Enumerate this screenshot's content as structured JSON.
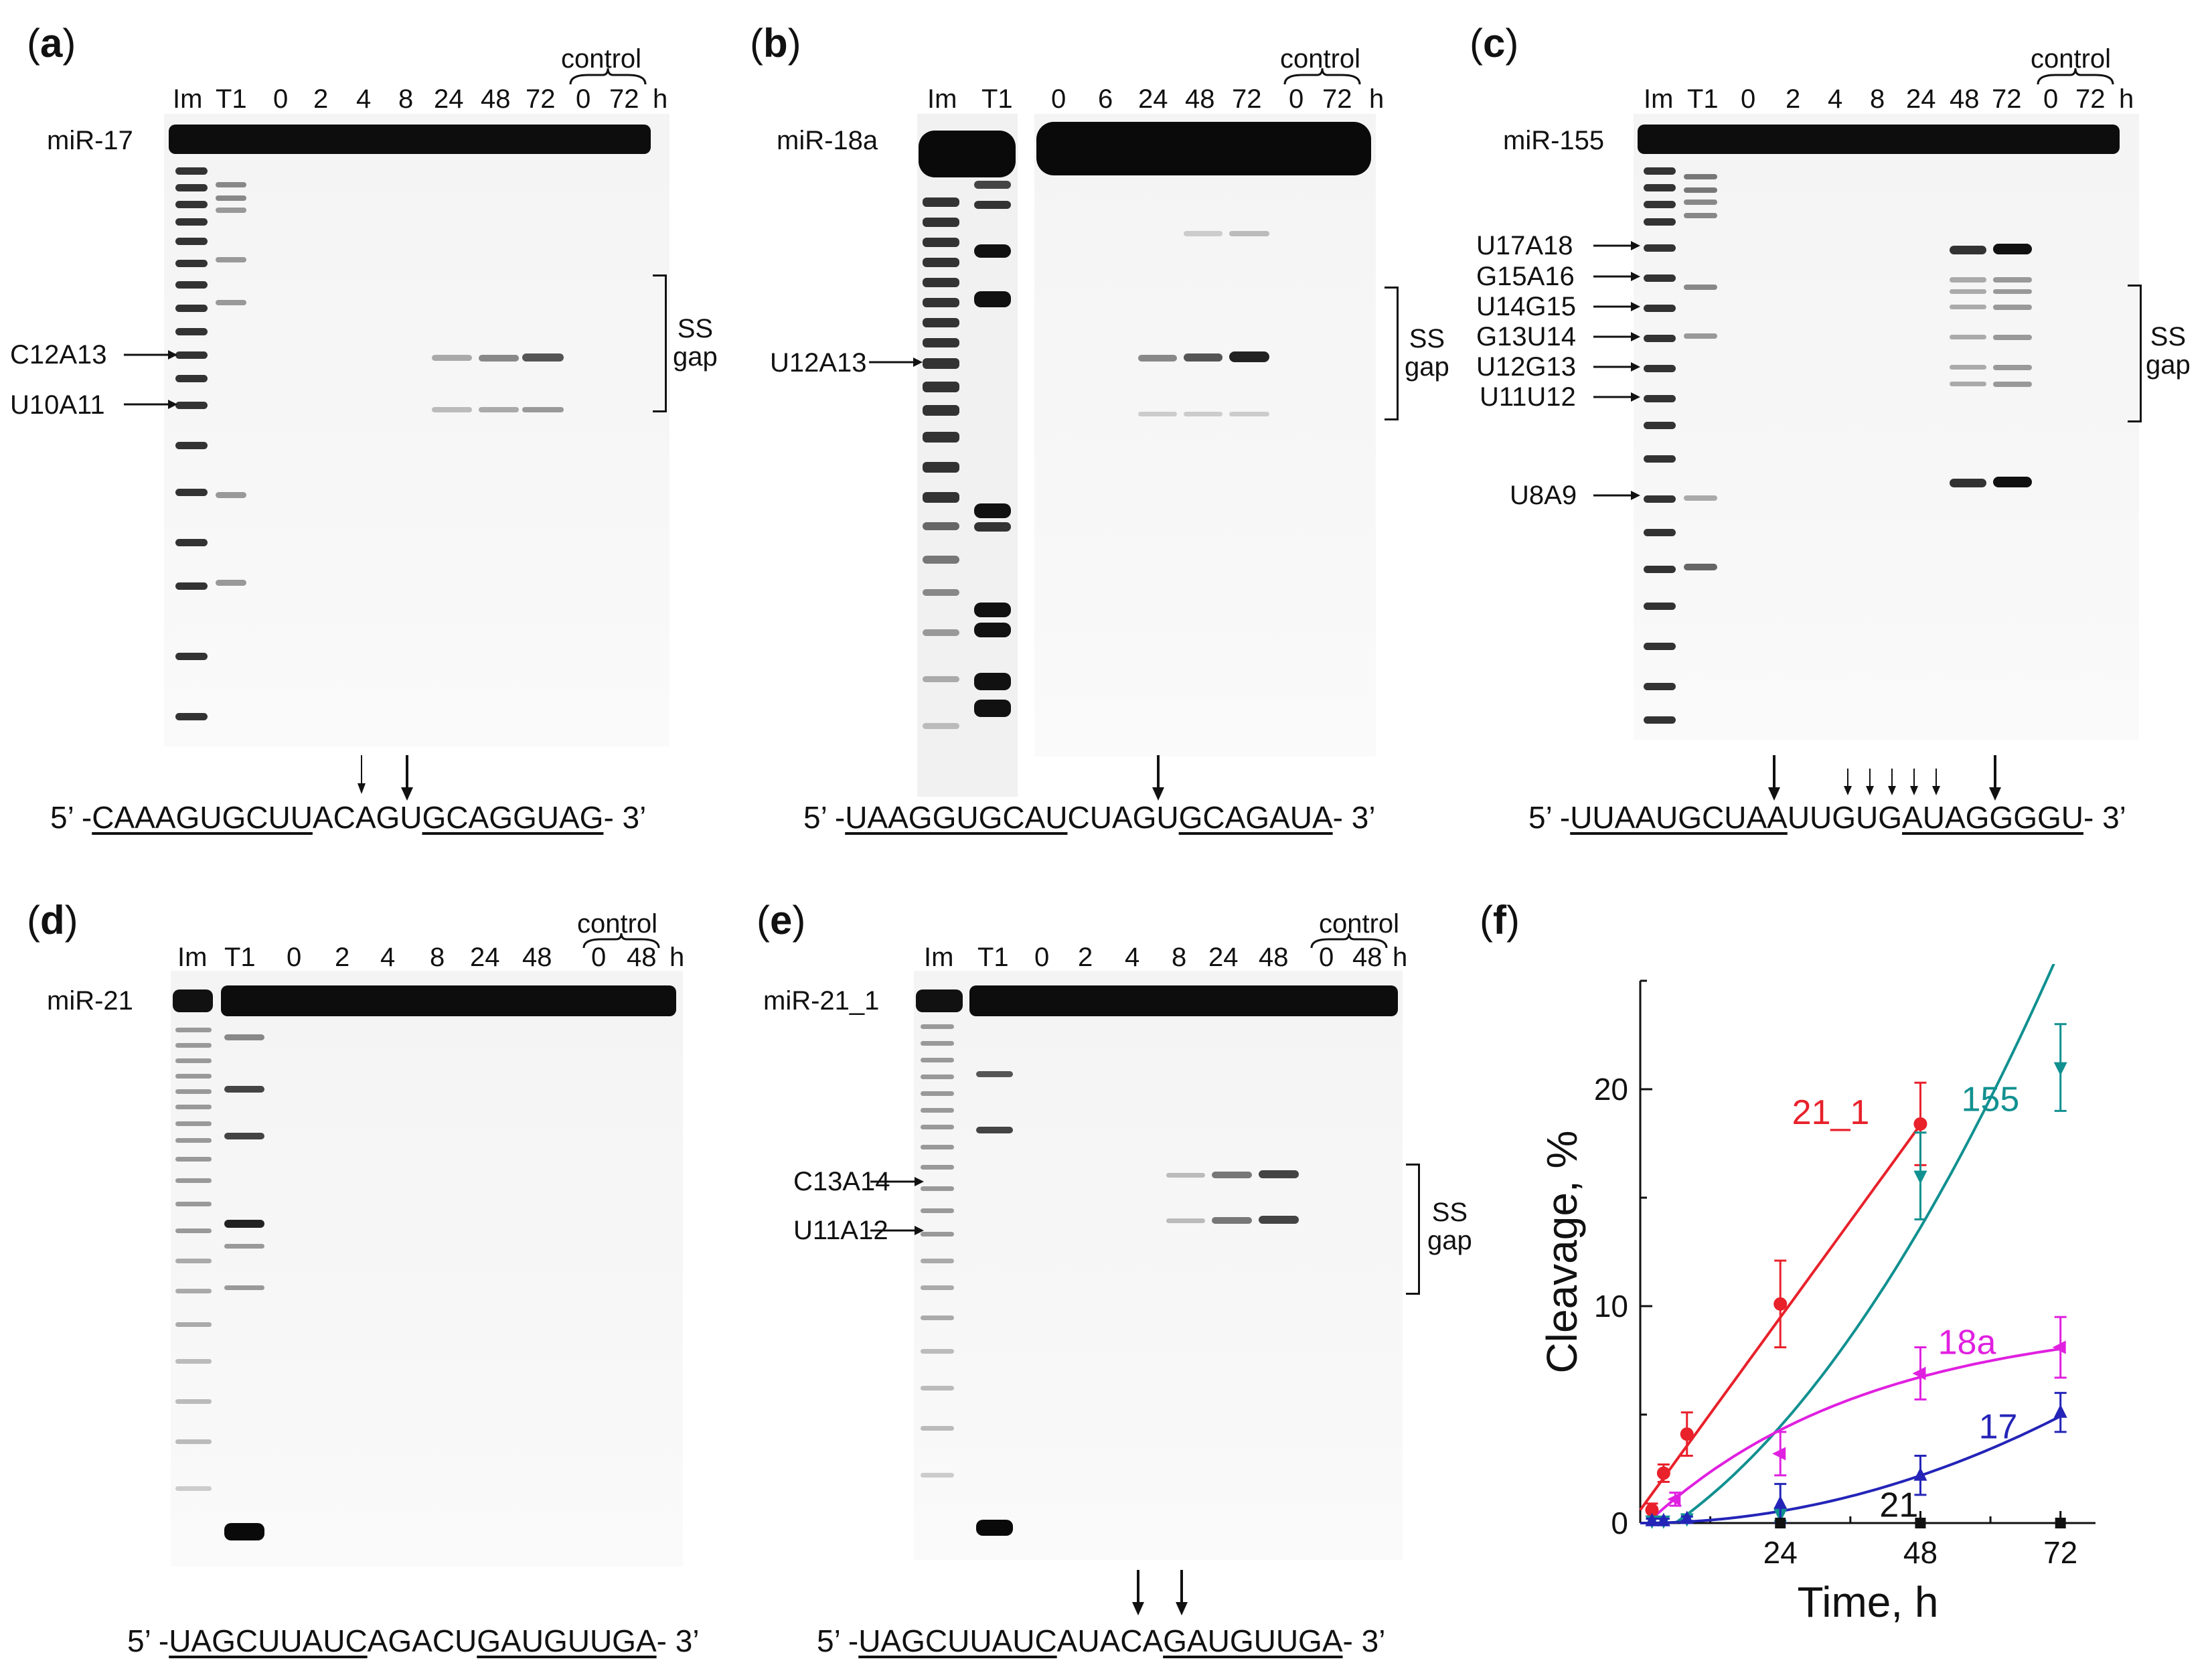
{
  "panels": {
    "a": {
      "label_open": "(",
      "label_letter": "a",
      "label_close": ")",
      "rna": "miR-17",
      "lanes": [
        "Im",
        "T1",
        "0",
        "2",
        "4",
        "8",
        "24",
        "48",
        "72",
        "0",
        "72"
      ],
      "unit": "h",
      "control_word": "control",
      "sites": [
        "C12A13",
        "U10A11"
      ],
      "ss_gap": [
        "SS",
        "gap"
      ],
      "seq_prefix": "5’ -",
      "seq_u1": "CAAAGUGCUU",
      "seq_mid": "ACAGU",
      "seq_u2": "GCAGGUAG",
      "seq_suffix": "- 3’"
    },
    "b": {
      "label_open": "(",
      "label_letter": "b",
      "label_close": ")",
      "rna": "miR-18a",
      "lanes": [
        "Im",
        "T1",
        "0",
        "6",
        "24",
        "48",
        "72",
        "0",
        "72"
      ],
      "unit": "h",
      "control_word": "control",
      "sites": [
        "U12A13"
      ],
      "ss_gap": [
        "SS",
        "gap"
      ],
      "seq_prefix": "5’ -",
      "seq_u1": "UAAGGUGCAU",
      "seq_mid": "CUAGU",
      "seq_u2": "GCAGAUA",
      "seq_suffix": "- 3’"
    },
    "c": {
      "label_open": "(",
      "label_letter": "c",
      "label_close": ")",
      "rna": "miR-155",
      "lanes": [
        "Im",
        "T1",
        "0",
        "2",
        "4",
        "8",
        "24",
        "48",
        "72",
        "0",
        "72"
      ],
      "unit": "h",
      "control_word": "control",
      "sites": [
        "U17A18",
        "G15A16",
        "U14G15",
        "G13U14",
        "U12G13",
        "U11U12",
        "U8A9"
      ],
      "ss_gap": [
        "SS",
        "gap"
      ],
      "seq_prefix": "5’ -",
      "seq_u1": "UUAAUGCUAA",
      "seq_mid": "UUGUG",
      "seq_u2": "AUAGGGGU",
      "seq_suffix": "- 3’"
    },
    "d": {
      "label_open": "(",
      "label_letter": "d",
      "label_close": ")",
      "rna": "miR-21",
      "lanes": [
        "Im",
        "T1",
        "0",
        "2",
        "4",
        "8",
        "24",
        "48",
        "0",
        "48"
      ],
      "unit": "h",
      "control_word": "control",
      "seq_prefix": "5’ -",
      "seq_u1": "UAGCUUAUC",
      "seq_mid": "AGACU",
      "seq_u2": "GAUGUUGA",
      "seq_suffix": "- 3’"
    },
    "e": {
      "label_open": "(",
      "label_letter": "e",
      "label_close": ")",
      "rna": "miR-21_1",
      "lanes": [
        "Im",
        "T1",
        "0",
        "2",
        "4",
        "8",
        "24",
        "48",
        "0",
        "48"
      ],
      "unit": "h",
      "control_word": "control",
      "sites": [
        "C13A14",
        "U11A12"
      ],
      "ss_gap": [
        "SS",
        "gap"
      ],
      "seq_prefix": "5’ -",
      "seq_u1": "UAGCUUAUC",
      "seq_mid": "AUACA",
      "seq_u2": "GAUGUUGA",
      "seq_suffix": "- 3’"
    },
    "f": {
      "label_open": "(",
      "label_letter": "f",
      "label_close": ")"
    }
  },
  "chart_data": {
    "type": "line",
    "xlabel": "Time, h",
    "ylabel": "Cleavage, %",
    "xlim": [
      0,
      78
    ],
    "ylim": [
      0,
      25
    ],
    "xticks": [
      24,
      48,
      72
    ],
    "yticks": [
      0,
      10,
      20
    ],
    "series": [
      {
        "name": "21_1",
        "color": "#e8212b",
        "marker": "circle",
        "x": [
          2,
          4,
          8,
          24,
          48
        ],
        "y": [
          0.6,
          2.3,
          4.1,
          10.1,
          18.4
        ],
        "err": [
          0.3,
          0.4,
          1.0,
          2.0,
          1.9
        ]
      },
      {
        "name": "155",
        "color": "#119090",
        "marker": "triangle-down",
        "x": [
          2,
          4,
          8,
          24,
          48,
          72
        ],
        "y": [
          0.1,
          0.1,
          0.2,
          0.4,
          16.0,
          21.0
        ],
        "err": [
          0.1,
          0.1,
          0.1,
          0.3,
          2.0,
          2.0
        ]
      },
      {
        "name": "18a",
        "color": "#e020e0",
        "marker": "triangle-left",
        "x": [
          6,
          24,
          48,
          72
        ],
        "y": [
          1.1,
          3.2,
          6.9,
          8.1
        ],
        "err": [
          0.3,
          1.0,
          1.2,
          1.4
        ]
      },
      {
        "name": "17",
        "color": "#2424b8",
        "marker": "triangle-up",
        "x": [
          2,
          4,
          8,
          24,
          48,
          72
        ],
        "y": [
          0.1,
          0.1,
          0.2,
          0.9,
          2.2,
          5.1
        ],
        "err": [
          0.1,
          0.1,
          0.1,
          0.9,
          0.9,
          0.9
        ]
      },
      {
        "name": "21",
        "color": "#111111",
        "marker": "square",
        "x": [
          24,
          48,
          72
        ],
        "y": [
          0,
          0,
          0
        ],
        "err": [
          0,
          0,
          0
        ]
      }
    ]
  }
}
